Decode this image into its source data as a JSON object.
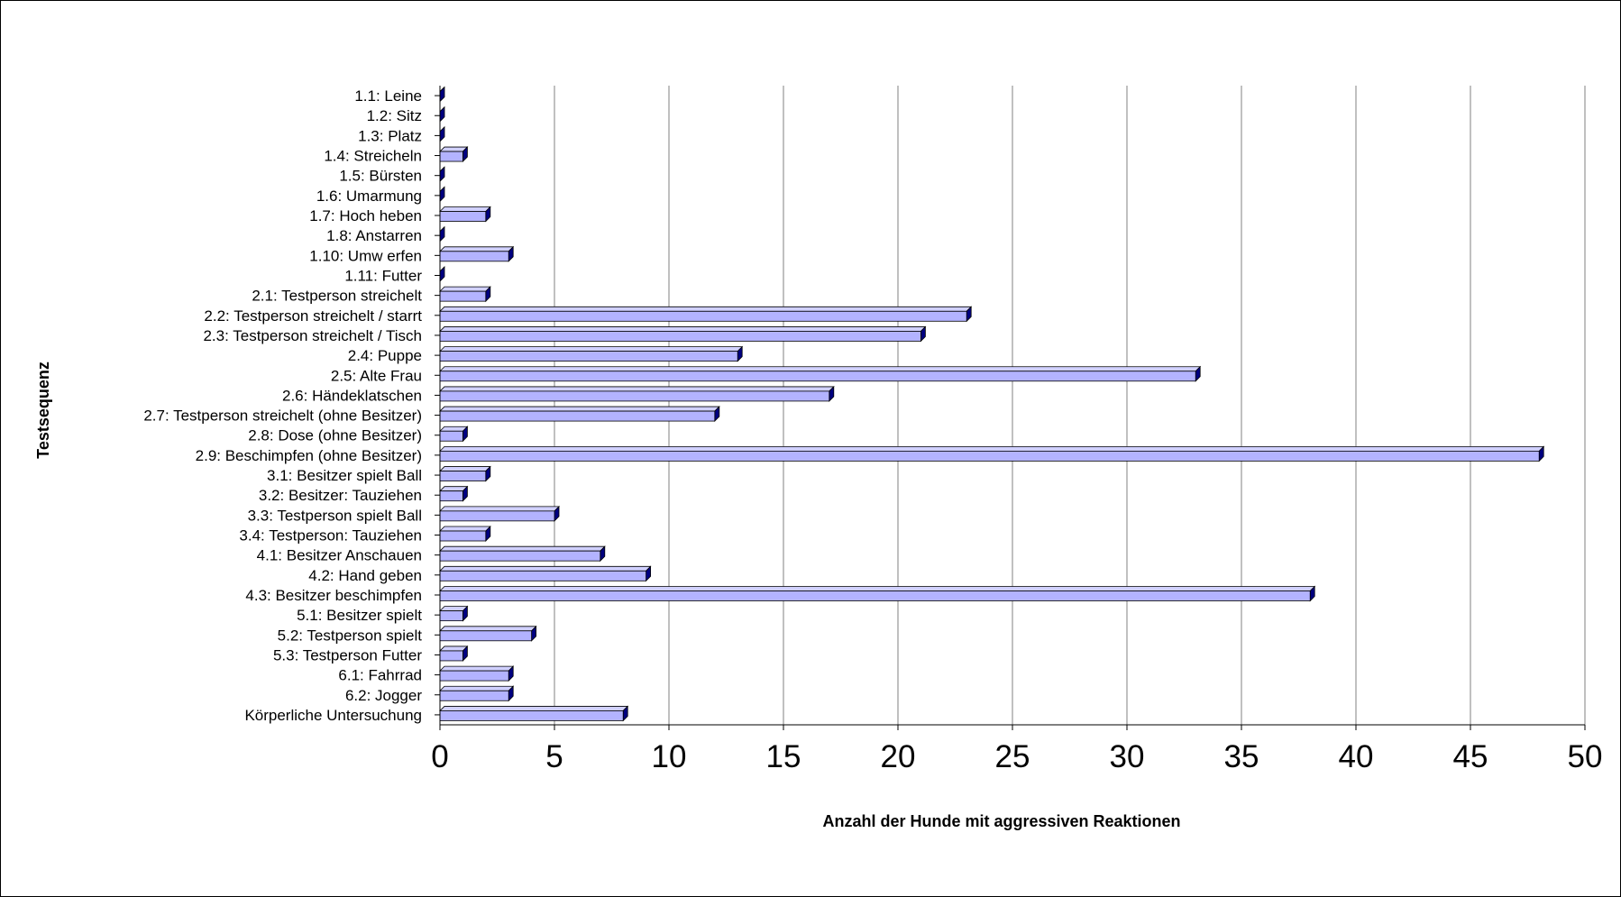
{
  "chart_data": {
    "type": "bar",
    "orientation": "horizontal",
    "categories": [
      "1.1: Leine",
      "1.2: Sitz",
      "1.3: Platz",
      "1.4: Streicheln",
      "1.5: Bürsten",
      "1.6: Umarmung",
      "1.7: Hoch heben",
      "1.8: Anstarren",
      "1.10: Umw erfen",
      "1.11: Futter",
      "2.1: Testperson streichelt",
      "2.2: Testperson streichelt / starrt",
      "2.3: Testperson streichelt / Tisch",
      "2.4: Puppe",
      "2.5: Alte Frau",
      "2.6: Händeklatschen",
      "2.7: Testperson streichelt (ohne Besitzer)",
      "2.8: Dose (ohne Besitzer)",
      "2.9: Beschimpfen (ohne Besitzer)",
      "3.1: Besitzer spielt Ball",
      "3.2: Besitzer: Tauziehen",
      "3.3: Testperson spielt Ball",
      "3.4: Testperson: Tauziehen",
      "4.1: Besitzer Anschauen",
      "4.2: Hand geben",
      "4.3: Besitzer beschimpfen",
      "5.1: Besitzer spielt",
      "5.2: Testperson spielt",
      "5.3: Testperson Futter",
      "6.1: Fahrrad",
      "6.2: Jogger",
      "Körperliche Untersuchung"
    ],
    "values": [
      0,
      0,
      0,
      1,
      0,
      0,
      2,
      0,
      3,
      0,
      2,
      23,
      21,
      13,
      33,
      17,
      12,
      1,
      48,
      2,
      1,
      5,
      2,
      7,
      9,
      38,
      1,
      4,
      1,
      3,
      3,
      8
    ],
    "xlabel": "Anzahl der Hunde mit aggressiven Reaktionen",
    "ylabel": "Testsequenz",
    "xlim": [
      0,
      50
    ],
    "xticks": [
      "0",
      "5",
      "10",
      "15",
      "20",
      "25",
      "30",
      "35",
      "40",
      "45",
      "50"
    ],
    "grid": true,
    "legend": "none",
    "colors": {
      "bar_face": "#b3b3ff",
      "bar_side": "#000080",
      "grid": "#808080"
    }
  }
}
